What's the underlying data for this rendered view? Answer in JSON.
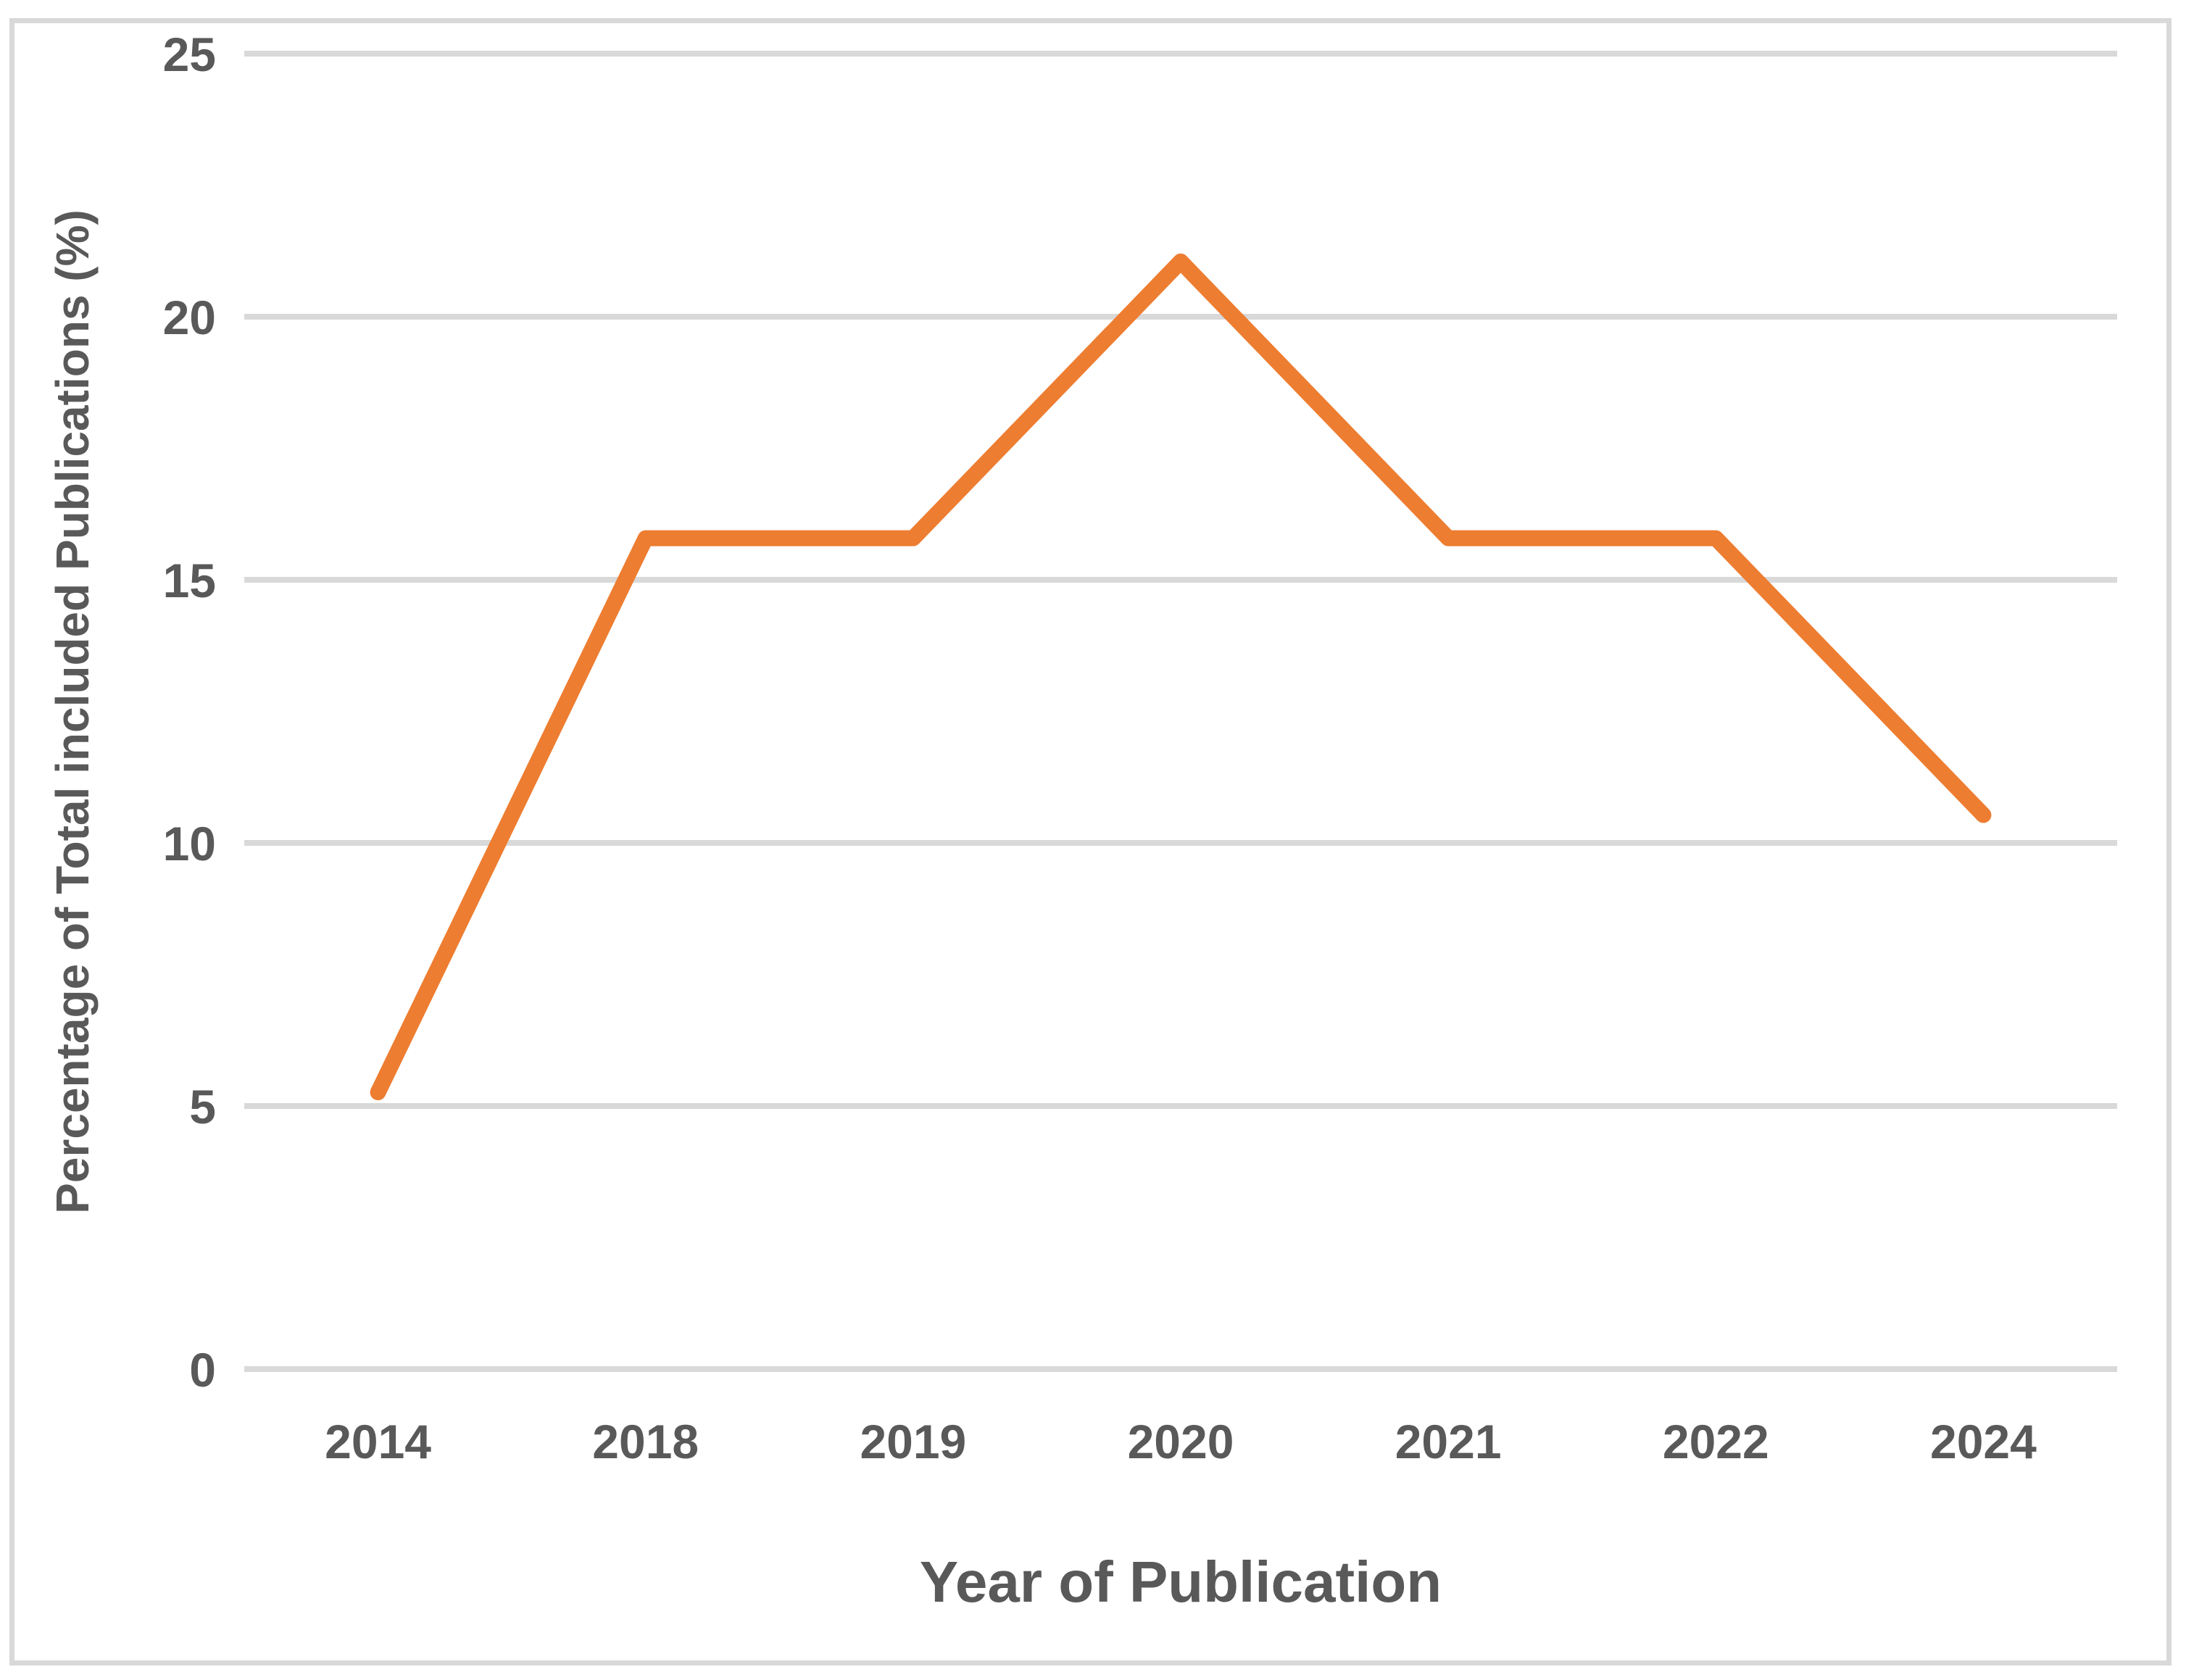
{
  "chart_data": {
    "type": "line",
    "title": "",
    "xlabel": "Year of Publication",
    "ylabel": "Percentage of Total included Publications (%)",
    "categories": [
      "2014",
      "2018",
      "2019",
      "2020",
      "2021",
      "2022",
      "2024"
    ],
    "series": [
      {
        "name": "Percentage of Total included Publications",
        "values": [
          5.26,
          15.79,
          15.79,
          21.05,
          15.79,
          15.79,
          10.53
        ]
      }
    ],
    "ylim": [
      0,
      25
    ],
    "yticks": [
      0,
      5,
      10,
      15,
      20,
      25
    ],
    "grid": "horizontal",
    "legend": "none",
    "colors": {
      "line": "#ED7D31",
      "gridline": "#D9D9D9",
      "frame_border": "#D9D9D9",
      "text": "#595959",
      "background": "#FFFFFF"
    }
  }
}
